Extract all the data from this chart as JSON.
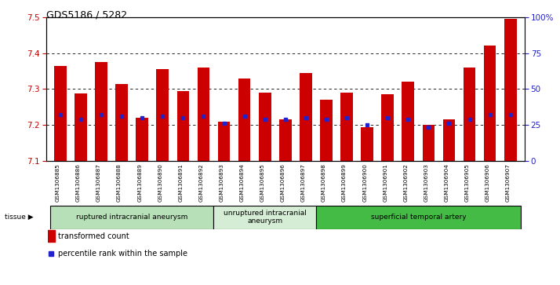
{
  "title": "GDS5186 / 5282",
  "samples": [
    "GSM1306885",
    "GSM1306886",
    "GSM1306887",
    "GSM1306888",
    "GSM1306889",
    "GSM1306890",
    "GSM1306891",
    "GSM1306892",
    "GSM1306893",
    "GSM1306894",
    "GSM1306895",
    "GSM1306896",
    "GSM1306897",
    "GSM1306898",
    "GSM1306899",
    "GSM1306900",
    "GSM1306901",
    "GSM1306902",
    "GSM1306903",
    "GSM1306904",
    "GSM1306905",
    "GSM1306906",
    "GSM1306907"
  ],
  "bar_values": [
    7.365,
    7.287,
    7.375,
    7.315,
    7.22,
    7.355,
    7.295,
    7.36,
    7.21,
    7.33,
    7.29,
    7.215,
    7.345,
    7.27,
    7.29,
    7.195,
    7.285,
    7.32,
    7.2,
    7.215,
    7.36,
    7.42,
    7.495
  ],
  "percentile_values": [
    7.23,
    7.215,
    7.23,
    7.225,
    7.22,
    7.225,
    7.22,
    7.225,
    7.205,
    7.225,
    7.215,
    7.215,
    7.22,
    7.215,
    7.22,
    7.2,
    7.22,
    7.215,
    7.195,
    7.205,
    7.215,
    7.23,
    7.23
  ],
  "ylim_left": [
    7.1,
    7.5
  ],
  "ylim_right": [
    0,
    100
  ],
  "yticks_left": [
    7.1,
    7.2,
    7.3,
    7.4,
    7.5
  ],
  "yticks_right": [
    0,
    25,
    50,
    75,
    100
  ],
  "ytick_labels_right": [
    "0",
    "25",
    "50",
    "75",
    "100%"
  ],
  "bar_color": "#cc0000",
  "marker_color": "#2222cc",
  "groups": [
    {
      "label": "ruptured intracranial aneurysm",
      "start": 0,
      "end": 8,
      "color": "#b8e0b8"
    },
    {
      "label": "unruptured intracranial\naneurysm",
      "start": 8,
      "end": 13,
      "color": "#d4edd4"
    },
    {
      "label": "superficial temporal artery",
      "start": 13,
      "end": 23,
      "color": "#44bb44"
    }
  ],
  "tissue_label": "tissue",
  "legend_bar_label": "transformed count",
  "legend_marker_label": "percentile rank within the sample"
}
